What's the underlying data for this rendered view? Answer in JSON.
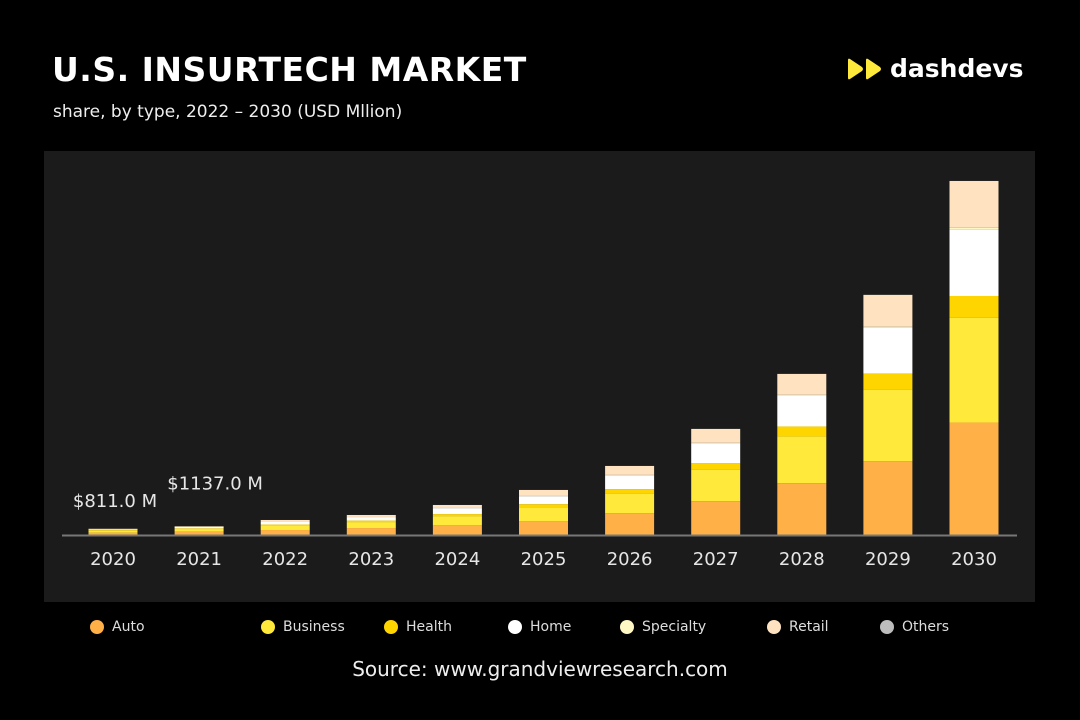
{
  "header": {
    "title": "U.S. INSURTECH MARKET",
    "subtitle": "share, by type, 2022 – 2030  (USD Mllion)",
    "logo_text": "dashdevs"
  },
  "source": "Source: www.grandviewresearch.com",
  "chart_data": {
    "type": "bar",
    "stacked": true,
    "title": "U.S. INSURTECH MARKET",
    "subtitle": "share, by type, 2022 – 2030  (USD Mllion)",
    "xlabel": "",
    "ylabel": "",
    "ylim": [
      0,
      50000
    ],
    "grid": false,
    "legend_position": "bottom",
    "categories": [
      "2020",
      "2021",
      "2022",
      "2023",
      "2024",
      "2025",
      "2026",
      "2027",
      "2028",
      "2029",
      "2030"
    ],
    "series": [
      {
        "name": "Auto",
        "color": "#FFB046",
        "values": [
          310,
          420,
          650,
          910,
          1300,
          1820,
          2860,
          4420,
          6760,
          9620,
          14690
        ]
      },
      {
        "name": "Business",
        "color": "#FFE93B",
        "values": [
          270,
          360,
          585,
          780,
          1170,
          1820,
          2600,
          4160,
          6110,
          9360,
          13650
        ]
      },
      {
        "name": "Health",
        "color": "#FFD500",
        "values": [
          65,
          85,
          130,
          195,
          260,
          390,
          520,
          780,
          1300,
          2080,
          2860
        ]
      },
      {
        "name": "Home",
        "color": "#FFFFFF",
        "values": [
          110,
          180,
          390,
          455,
          780,
          1040,
          1820,
          2600,
          4030,
          5980,
          8710
        ]
      },
      {
        "name": "Specialty",
        "color": "#FFF8C4",
        "values": [
          6,
          8,
          10,
          13,
          20,
          30,
          45,
          70,
          100,
          150,
          200
        ]
      },
      {
        "name": "Retail",
        "color": "#FFE3C0",
        "values": [
          50,
          84,
          195,
          260,
          390,
          780,
          1170,
          1820,
          2730,
          4160,
          6110
        ]
      },
      {
        "name": "Others",
        "color": "#BDBDBD",
        "values": [
          0,
          0,
          0,
          0,
          0,
          0,
          0,
          0,
          0,
          0,
          0
        ]
      }
    ],
    "annotations": [
      {
        "category": "2020",
        "text": "$811.0 M"
      },
      {
        "category": "2021",
        "text": "$1137.0 M"
      }
    ]
  }
}
